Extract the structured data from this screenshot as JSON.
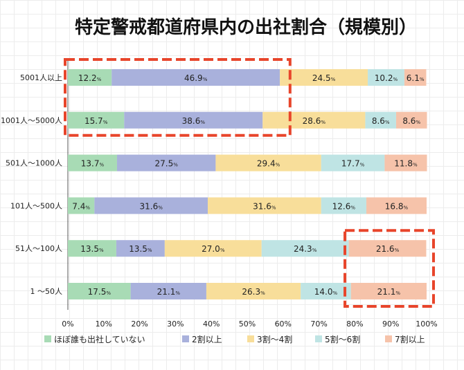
{
  "chart_data": {
    "type": "bar",
    "orientation": "horizontal",
    "stacked": true,
    "title": "特定警戒都道府県内の出社割合（規模別）",
    "categories": [
      "5001人以上",
      "1001人～5000人",
      "501人～1000人",
      "101人～500人",
      "51人～100人",
      "1 ～50人"
    ],
    "series": [
      {
        "name": "ほぼ誰も出社していない",
        "color": "#a8dbb5",
        "values": [
          12.2,
          15.7,
          13.7,
          7.4,
          13.5,
          17.5
        ]
      },
      {
        "name": "2割以上",
        "color": "#a9b1dc",
        "values": [
          46.9,
          38.6,
          27.5,
          31.6,
          13.5,
          21.1
        ]
      },
      {
        "name": "3割～4割",
        "color": "#f8de9a",
        "values": [
          24.5,
          28.6,
          29.4,
          31.6,
          27.0,
          26.3
        ]
      },
      {
        "name": "5割～6割",
        "color": "#bfe4e4",
        "values": [
          10.2,
          8.6,
          17.7,
          12.6,
          24.3,
          14.0
        ]
      },
      {
        "name": "7割以上",
        "color": "#f6c3aa",
        "values": [
          6.1,
          8.6,
          11.8,
          16.8,
          21.6,
          21.1
        ]
      }
    ],
    "xlim": [
      0,
      100
    ],
    "xticks": [
      "0%",
      "10%",
      "20%",
      "30%",
      "40%",
      "50%",
      "60%",
      "70%",
      "80%",
      "90%",
      "100%"
    ],
    "value_suffix": "%",
    "legend_position": "bottom",
    "grid": false,
    "highlight_boxes": [
      {
        "categories": [
          "5001人以上",
          "1001人～5000人"
        ],
        "x_range": [
          0,
          60
        ],
        "color": "#e8452b"
      },
      {
        "categories": [
          "51人～100人",
          "1 ～50人"
        ],
        "x_range": [
          78,
          100
        ],
        "color": "#e8452b"
      }
    ]
  }
}
